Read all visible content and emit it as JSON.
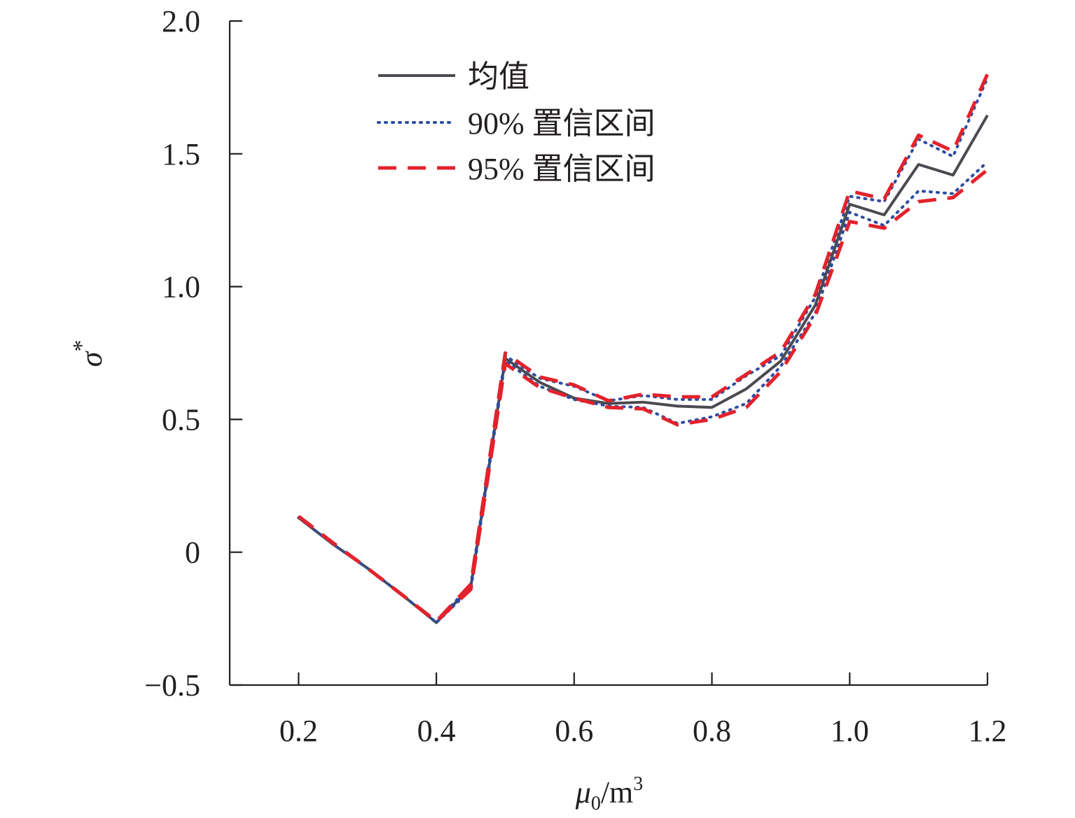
{
  "chart_data": {
    "type": "line",
    "xlabel": "μ0/m3",
    "ylabel": "σ*",
    "xlabel_parts": {
      "symbol": "μ",
      "sub": "0",
      "unit": "/m",
      "sup": "3"
    },
    "ylabel_parts": {
      "symbol": "σ",
      "sup": "*"
    },
    "xlim": [
      0.1,
      1.2
    ],
    "ylim": [
      -0.5,
      2.0
    ],
    "x_ticks": [
      {
        "value": 0.2,
        "label": "0.2"
      },
      {
        "value": 0.4,
        "label": "0.4"
      },
      {
        "value": 0.6,
        "label": "0.6"
      },
      {
        "value": 0.8,
        "label": "0.8"
      },
      {
        "value": 1.0,
        "label": "1.0"
      },
      {
        "value": 1.2,
        "label": "1.2"
      }
    ],
    "y_ticks": [
      {
        "value": -0.5,
        "label": "−0.5"
      },
      {
        "value": 0,
        "label": "0"
      },
      {
        "value": 0.5,
        "label": "0.5"
      },
      {
        "value": 1.0,
        "label": "1.0"
      },
      {
        "value": 1.5,
        "label": "1.5"
      },
      {
        "value": 2.0,
        "label": "2.0"
      }
    ],
    "grid": false,
    "legend_position": "top-left",
    "series": [
      {
        "name": "均值",
        "style": "solid",
        "color": "#4a4a50",
        "points": [
          [
            0.2,
            0.13
          ],
          [
            0.25,
            0.03
          ],
          [
            0.3,
            -0.06
          ],
          [
            0.35,
            -0.16
          ],
          [
            0.4,
            -0.265
          ],
          [
            0.45,
            -0.13
          ],
          [
            0.5,
            0.73
          ],
          [
            0.55,
            0.64
          ],
          [
            0.6,
            0.58
          ],
          [
            0.65,
            0.56
          ],
          [
            0.7,
            0.565
          ],
          [
            0.75,
            0.55
          ],
          [
            0.8,
            0.545
          ],
          [
            0.85,
            0.615
          ],
          [
            0.9,
            0.72
          ],
          [
            0.95,
            0.93
          ],
          [
            1.0,
            1.31
          ],
          [
            1.05,
            1.27
          ],
          [
            1.1,
            1.46
          ],
          [
            1.15,
            1.42
          ],
          [
            1.2,
            1.645
          ]
        ]
      },
      {
        "name": "90% 置信区间",
        "style": "dotted",
        "color": "#2e4da0",
        "bounds": [
          [
            [
              0.2,
              0.13
            ],
            [
              0.25,
              0.03
            ],
            [
              0.3,
              -0.06
            ],
            [
              0.35,
              -0.16
            ],
            [
              0.4,
              -0.265
            ],
            [
              0.45,
              -0.12
            ],
            [
              0.5,
              0.74
            ],
            [
              0.55,
              0.655
            ],
            [
              0.6,
              0.625
            ],
            [
              0.65,
              0.57
            ],
            [
              0.7,
              0.59
            ],
            [
              0.75,
              0.575
            ],
            [
              0.8,
              0.575
            ],
            [
              0.85,
              0.665
            ],
            [
              0.9,
              0.74
            ],
            [
              0.95,
              0.96
            ],
            [
              1.0,
              1.34
            ],
            [
              1.05,
              1.32
            ],
            [
              1.1,
              1.555
            ],
            [
              1.15,
              1.49
            ],
            [
              1.2,
              1.785
            ]
          ],
          [
            [
              0.2,
              0.13
            ],
            [
              0.25,
              0.03
            ],
            [
              0.3,
              -0.06
            ],
            [
              0.35,
              -0.16
            ],
            [
              0.4,
              -0.265
            ],
            [
              0.45,
              -0.14
            ],
            [
              0.5,
              0.72
            ],
            [
              0.55,
              0.625
            ],
            [
              0.6,
              0.575
            ],
            [
              0.65,
              0.55
            ],
            [
              0.7,
              0.545
            ],
            [
              0.75,
              0.485
            ],
            [
              0.8,
              0.51
            ],
            [
              0.85,
              0.56
            ],
            [
              0.9,
              0.7
            ],
            [
              0.95,
              0.9
            ],
            [
              1.0,
              1.28
            ],
            [
              1.05,
              1.23
            ],
            [
              1.1,
              1.36
            ],
            [
              1.15,
              1.35
            ],
            [
              1.2,
              1.47
            ]
          ]
        ]
      },
      {
        "name": "95% 置信区间",
        "style": "dashed",
        "color": "#e3222c",
        "bounds": [
          [
            [
              0.2,
              0.135
            ],
            [
              0.25,
              0.035
            ],
            [
              0.3,
              -0.06
            ],
            [
              0.35,
              -0.16
            ],
            [
              0.4,
              -0.26
            ],
            [
              0.45,
              -0.12
            ],
            [
              0.5,
              0.75
            ],
            [
              0.55,
              0.66
            ],
            [
              0.6,
              0.63
            ],
            [
              0.65,
              0.57
            ],
            [
              0.7,
              0.595
            ],
            [
              0.75,
              0.585
            ],
            [
              0.8,
              0.585
            ],
            [
              0.85,
              0.67
            ],
            [
              0.9,
              0.755
            ],
            [
              0.95,
              0.97
            ],
            [
              1.0,
              1.36
            ],
            [
              1.05,
              1.33
            ],
            [
              1.1,
              1.57
            ],
            [
              1.15,
              1.51
            ],
            [
              1.2,
              1.8
            ]
          ],
          [
            [
              0.2,
              0.135
            ],
            [
              0.25,
              0.035
            ],
            [
              0.3,
              -0.06
            ],
            [
              0.35,
              -0.16
            ],
            [
              0.4,
              -0.26
            ],
            [
              0.45,
              -0.14
            ],
            [
              0.5,
              0.71
            ],
            [
              0.55,
              0.62
            ],
            [
              0.6,
              0.58
            ],
            [
              0.65,
              0.545
            ],
            [
              0.7,
              0.54
            ],
            [
              0.75,
              0.48
            ],
            [
              0.8,
              0.5
            ],
            [
              0.85,
              0.545
            ],
            [
              0.9,
              0.68
            ],
            [
              0.95,
              0.89
            ],
            [
              1.0,
              1.245
            ],
            [
              1.05,
              1.22
            ],
            [
              1.1,
              1.32
            ],
            [
              1.15,
              1.335
            ],
            [
              1.2,
              1.44
            ]
          ]
        ]
      }
    ]
  }
}
